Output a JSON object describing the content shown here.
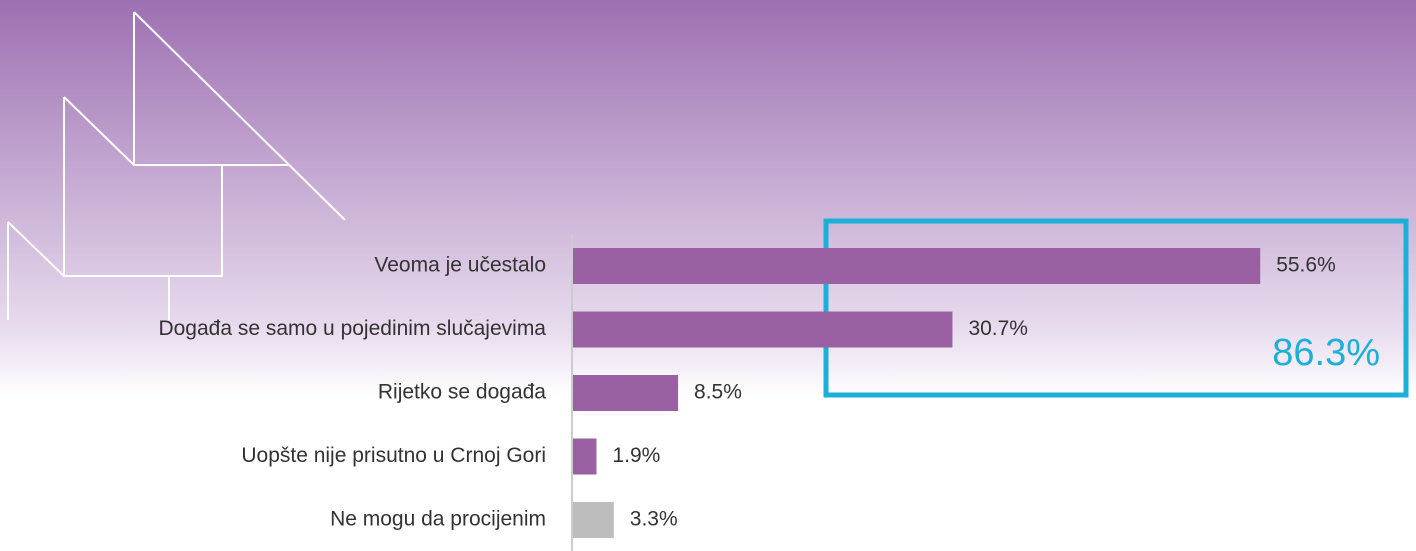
{
  "chart_data": {
    "type": "hbar",
    "categories": [
      "Veoma je učestalo",
      "Događa se samo u pojedinim slučajevima",
      "Rijetko se događa",
      "Uopšte nije prisutno u Crnoj Gori",
      "Ne mogu da procijenim"
    ],
    "values": [
      55.6,
      30.7,
      8.5,
      1.9,
      3.3
    ],
    "value_labels": [
      "55.6%",
      "30.7%",
      "8.5%",
      "1.9%",
      "3.3%"
    ],
    "colors": [
      "#9b5fa3",
      "#9b5fa3",
      "#9b5fa3",
      "#9b5fa3",
      "#bdbdbd"
    ],
    "annotation": "86.3%",
    "annotation_color": "#1ab0d8"
  }
}
